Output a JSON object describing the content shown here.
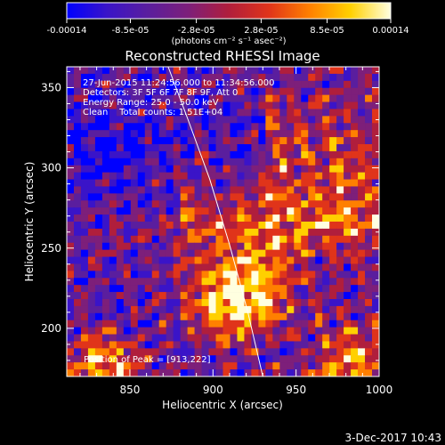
{
  "chart_data": {
    "type": "heatmap",
    "title": "Reconstructed RHESSI Image",
    "colorbar": {
      "min": -0.00014,
      "max": 0.00014,
      "tick_labels": [
        "-0.00014",
        "-8.5e-05",
        "-2.8e-05",
        "2.8e-05",
        "8.5e-05",
        "0.00014"
      ],
      "tick_values": [
        -0.00014,
        -8.5e-05,
        -2.8e-05,
        2.8e-05,
        8.5e-05,
        0.00014
      ],
      "unit_label": "(photons cm⁻² s⁻¹ asec⁻²)",
      "colormap": [
        "#0000ff",
        "#3a14c8",
        "#5a1e9e",
        "#7d1f7a",
        "#b01e3c",
        "#e0341a",
        "#ff8000",
        "#ffd000",
        "#ffffe0"
      ]
    },
    "xlabel": "Heliocentric X (arcsec)",
    "ylabel": "Heliocentric Y (arcsec)",
    "xlim": [
      812,
      1000
    ],
    "ylim": [
      170,
      363
    ],
    "xticks": [
      850,
      900,
      950,
      1000
    ],
    "yticks": [
      200,
      250,
      300,
      350
    ],
    "annotations": [
      "27-Jun-2015 11:24:56.000 to 11:34:56.000",
      "Detectors: 3F 5F 6F 7F 8F 9F, Att 0",
      "Energy Range: 25.0 - 50.0 keV",
      "Clean    Total counts: 1.51E+04"
    ],
    "peak_label": "Position of Peak = [913,222]",
    "peak": [
      913,
      222
    ],
    "limb_curve": {
      "x": [
        873,
        885,
        898,
        910,
        921,
        930
      ],
      "y": [
        363,
        330,
        293,
        252,
        210,
        170
      ]
    }
  },
  "footer": {
    "date": "3-Dec-2017 10:43"
  }
}
